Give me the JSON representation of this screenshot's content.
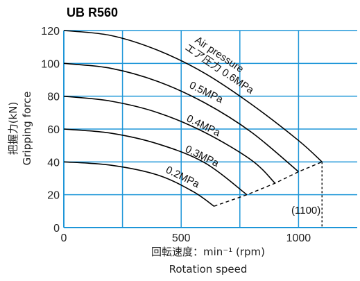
{
  "chart_data": {
    "type": "line",
    "title": "UB R560",
    "xlabel": "回転速度：min⁻¹ (rpm)",
    "xlabel2": "Rotation speed",
    "ylabel": "把握力(kN)",
    "ylabel2": "Gripping force",
    "xlim": [
      0,
      1250
    ],
    "ylim": [
      0,
      120
    ],
    "xticks": [
      0,
      500,
      1000
    ],
    "yticks": [
      0,
      20,
      40,
      60,
      80,
      100,
      120
    ],
    "grid": true,
    "annotation": "(1100)",
    "series": [
      {
        "name": "Air pressure エア圧力 0.6MPa",
        "x": [
          0,
          200,
          400,
          600,
          800,
          1000,
          1100
        ],
        "y": [
          120,
          117,
          108,
          94,
          75,
          53,
          40
        ]
      },
      {
        "name": "0.5MPa",
        "x": [
          0,
          200,
          400,
          600,
          800,
          1000
        ],
        "y": [
          100,
          97,
          89,
          76,
          58,
          34
        ]
      },
      {
        "name": "0.4MPa",
        "x": [
          0,
          200,
          400,
          600,
          800,
          900
        ],
        "y": [
          80,
          77,
          70,
          58,
          41,
          27
        ]
      },
      {
        "name": "0.3MPa",
        "x": [
          0,
          200,
          400,
          600,
          780
        ],
        "y": [
          60,
          57.5,
          51,
          39.5,
          20
        ]
      },
      {
        "name": "0.2MPa",
        "x": [
          0,
          200,
          400,
          550,
          640
        ],
        "y": [
          40,
          38,
          32,
          22,
          13
        ]
      }
    ],
    "limit_line": {
      "x": [
        640,
        780,
        900,
        1000,
        1100
      ],
      "y": [
        13,
        20,
        27,
        34,
        40
      ]
    },
    "colors": {
      "grid": "#1e96d8",
      "line": "#000000"
    }
  }
}
